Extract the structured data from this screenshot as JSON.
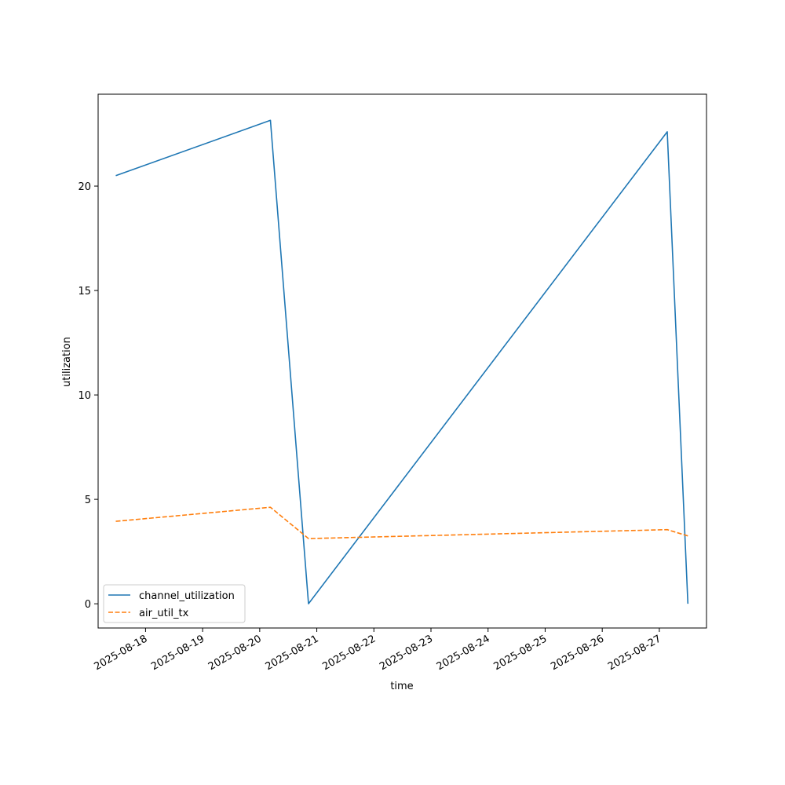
{
  "chart_data": {
    "type": "line",
    "title": "",
    "xlabel": "time",
    "ylabel": "utilization",
    "x_ticks": [
      "2025-08-18",
      "2025-08-19",
      "2025-08-20",
      "2025-08-21",
      "2025-08-22",
      "2025-08-23",
      "2025-08-24",
      "2025-08-25",
      "2025-08-26",
      "2025-08-27"
    ],
    "y_ticks": [
      "0",
      "5",
      "10",
      "15",
      "20"
    ],
    "xlim": [
      "2025-08-17T04:04",
      "2025-08-27T19:50"
    ],
    "ylim": [
      -1.16,
      24.4
    ],
    "grid": false,
    "legend_position": "lower left",
    "series": [
      {
        "name": "channel_utilization",
        "color": "#1f77b4",
        "line_style": "solid",
        "points": [
          {
            "x": "2025-08-17T11:30",
            "y": 20.5
          },
          {
            "x": "2025-08-20T04:30",
            "y": 23.15
          },
          {
            "x": "2025-08-20T20:30",
            "y": 0.0
          },
          {
            "x": "2025-08-27T03:20",
            "y": 22.6
          },
          {
            "x": "2025-08-27T12:00",
            "y": 0.0
          }
        ]
      },
      {
        "name": "air_util_tx",
        "color": "#ff7f0e",
        "line_style": "dashed",
        "points": [
          {
            "x": "2025-08-17T11:30",
            "y": 3.95
          },
          {
            "x": "2025-08-20T04:30",
            "y": 4.62
          },
          {
            "x": "2025-08-20T20:30",
            "y": 3.12
          },
          {
            "x": "2025-08-27T03:20",
            "y": 3.55
          },
          {
            "x": "2025-08-27T12:00",
            "y": 3.25
          }
        ]
      }
    ]
  }
}
